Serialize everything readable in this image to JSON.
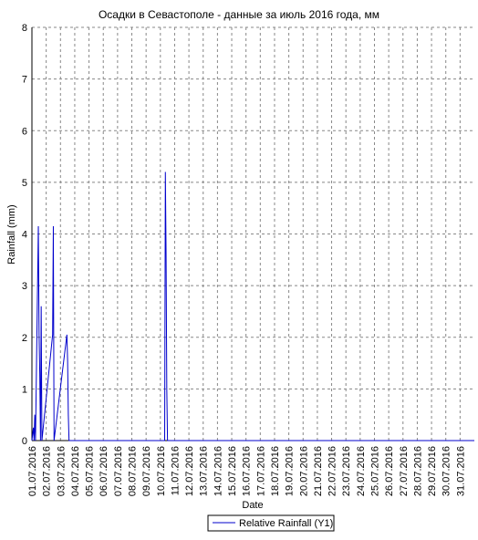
{
  "chart_data": {
    "type": "line",
    "title": "Осадки в Севастополе - данные за июль 2016 года, мм",
    "x_label": "Date",
    "y_label": "Rainfall (mm)",
    "xlim": [
      1,
      32
    ],
    "ylim": [
      0,
      8
    ],
    "yticks": [
      0,
      1,
      2,
      3,
      4,
      5,
      6,
      7,
      8
    ],
    "xticks": [
      {
        "value": 1,
        "label": "01.07.2016"
      },
      {
        "value": 2,
        "label": "02.07.2016"
      },
      {
        "value": 3,
        "label": "03.07.2016"
      },
      {
        "value": 4,
        "label": "04.07.2016"
      },
      {
        "value": 5,
        "label": "05.07.2016"
      },
      {
        "value": 6,
        "label": "06.07.2016"
      },
      {
        "value": 7,
        "label": "07.07.2016"
      },
      {
        "value": 8,
        "label": "08.07.2016"
      },
      {
        "value": 9,
        "label": "09.07.2016"
      },
      {
        "value": 10,
        "label": "10.07.2016"
      },
      {
        "value": 11,
        "label": "11.07.2016"
      },
      {
        "value": 12,
        "label": "12.07.2016"
      },
      {
        "value": 13,
        "label": "13.07.2016"
      },
      {
        "value": 14,
        "label": "14.07.2016"
      },
      {
        "value": 15,
        "label": "15.07.2016"
      },
      {
        "value": 16,
        "label": "16.07.2016"
      },
      {
        "value": 17,
        "label": "17.07.2016"
      },
      {
        "value": 18,
        "label": "18.07.2016"
      },
      {
        "value": 19,
        "label": "19.07.2016"
      },
      {
        "value": 20,
        "label": "20.07.2016"
      },
      {
        "value": 21,
        "label": "21.07.2016"
      },
      {
        "value": 22,
        "label": "22.07.2016"
      },
      {
        "value": 23,
        "label": "23.07.2016"
      },
      {
        "value": 24,
        "label": "24.07.2016"
      },
      {
        "value": 25,
        "label": "25.07.2016"
      },
      {
        "value": 26,
        "label": "26.07.2016"
      },
      {
        "value": 27,
        "label": "27.07.2016"
      },
      {
        "value": 28,
        "label": "28.07.2016"
      },
      {
        "value": 29,
        "label": "29.07.2016"
      },
      {
        "value": 30,
        "label": "30.07.2016"
      },
      {
        "value": 31,
        "label": "31.07.2016"
      }
    ],
    "grid": true,
    "x": [
      1.0,
      1.1,
      1.15,
      1.2,
      1.25,
      1.45,
      1.5,
      1.55,
      1.6,
      1.65,
      1.7,
      2.45,
      2.5,
      2.55,
      3.45,
      3.5,
      3.55,
      3.6,
      10.3,
      10.35,
      10.4,
      10.45,
      10.5,
      32
    ],
    "series": [
      {
        "name": "Relative Rainfall (Y1)",
        "color": "#0000cc",
        "values": [
          0,
          0.25,
          0,
          0.5,
          0,
          4.15,
          2.05,
          1.3,
          0,
          2.6,
          0,
          2.05,
          4.15,
          0,
          2.05,
          1.55,
          0.5,
          0,
          0,
          5.2,
          3.6,
          1.0,
          0,
          0
        ]
      }
    ]
  }
}
